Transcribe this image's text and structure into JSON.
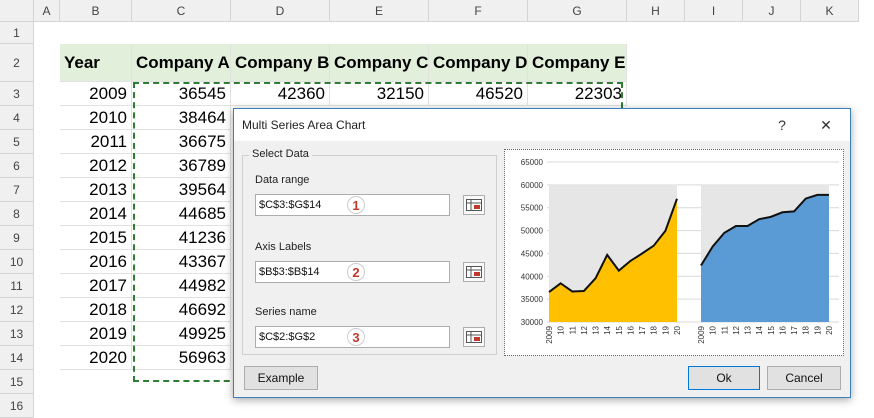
{
  "columns": [
    "A",
    "B",
    "C",
    "D",
    "E",
    "F",
    "G",
    "H",
    "I",
    "J",
    "K"
  ],
  "rows": [
    "1",
    "2",
    "3",
    "4",
    "5",
    "6",
    "7",
    "8",
    "9",
    "10",
    "11",
    "12",
    "13",
    "14",
    "15",
    "16"
  ],
  "table": {
    "headers": [
      "Year",
      "Company A",
      "Company B",
      "Company C",
      "Company D",
      "Company E"
    ],
    "years": [
      "2009",
      "2010",
      "2011",
      "2012",
      "2013",
      "2014",
      "2015",
      "2016",
      "2017",
      "2018",
      "2019",
      "2020"
    ],
    "company_a": [
      "36545",
      "38464",
      "36675",
      "36789",
      "39564",
      "44685",
      "41236",
      "43367",
      "44982",
      "46692",
      "49925",
      "56963"
    ],
    "row3_rest": [
      "42360",
      "32150",
      "46520",
      "22303"
    ]
  },
  "dialog": {
    "title": "Multi Series Area Chart",
    "help": "?",
    "close": "✕",
    "group_title": "Select Data",
    "data_range_label": "Data range",
    "data_range_value": "$C$3:$G$14",
    "axis_labels_label": "Axis Labels",
    "axis_labels_value": "$B$3:$B$14",
    "series_name_label": "Series name",
    "series_name_value": "$C$2:$G$2",
    "badges": [
      "1",
      "2",
      "3"
    ],
    "example_button": "Example",
    "ok_button": "Ok",
    "cancel_button": "Cancel"
  },
  "chart_data": {
    "type": "area",
    "ylim": [
      30000,
      65000
    ],
    "y_ticks": [
      "65000",
      "60000",
      "55000",
      "50000",
      "45000",
      "40000",
      "35000",
      "30000"
    ],
    "x_ticks": [
      "2009",
      "10",
      "11",
      "12",
      "13",
      "14",
      "15",
      "16",
      "17",
      "18",
      "19",
      "20"
    ],
    "series": [
      {
        "values": [
          36545,
          38464,
          36675,
          36789,
          39564,
          44685,
          41236,
          43367,
          44982,
          46692,
          49925,
          56963
        ],
        "color": "#ffc000"
      },
      {
        "values": [
          42360,
          46500,
          49500,
          51000,
          51000,
          52500,
          53000,
          54000,
          54200,
          57000,
          57800,
          57800
        ],
        "color": "#5b9bd5"
      }
    ],
    "panel_bg": "#e7e6e6"
  }
}
